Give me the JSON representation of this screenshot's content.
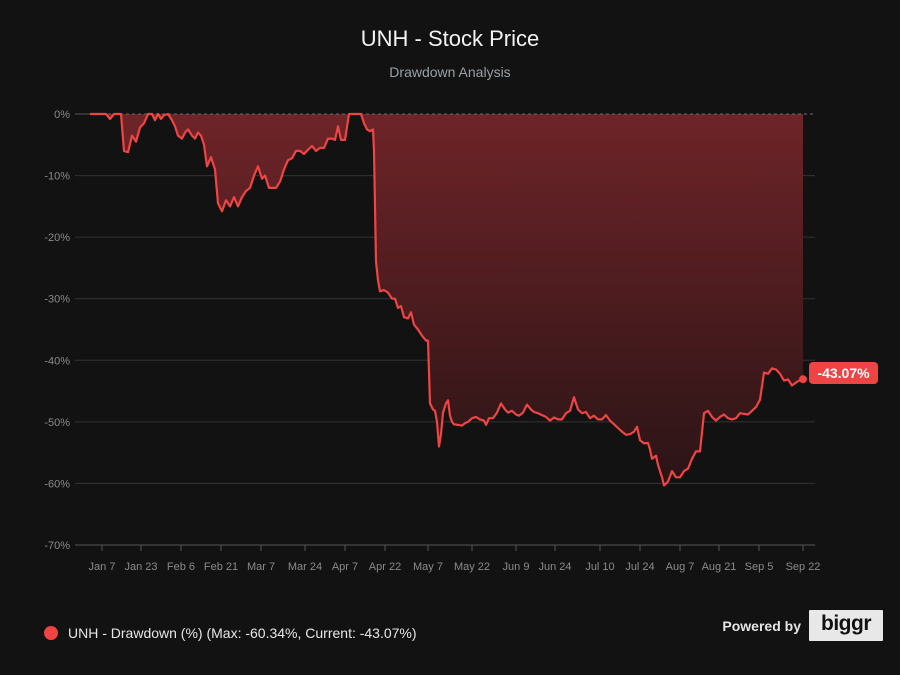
{
  "header": {
    "title": "UNH - Stock Price",
    "subtitle": "Drawdown Analysis"
  },
  "legend": {
    "label": "UNH - Drawdown (%) (Max: -60.34%, Current: -43.07%)",
    "color": "#ef4444"
  },
  "footer": {
    "powered_by": "Powered by",
    "brand": "biggr"
  },
  "current_label": "-43.07%",
  "colors": {
    "background": "#121212",
    "line": "#ef4444",
    "fill_top": "#6b2428",
    "fill_bottom": "#2a1416",
    "grid": "#333333",
    "axis_text": "#8a8a8a"
  },
  "chart_data": {
    "type": "area",
    "title": "UNH - Stock Price",
    "subtitle": "Drawdown Analysis",
    "xlabel": "",
    "ylabel": "",
    "ylim": [
      -70,
      0
    ],
    "yticks": [
      "0%",
      "-10%",
      "-20%",
      "-30%",
      "-40%",
      "-50%",
      "-60%",
      "-70%"
    ],
    "xticks": [
      "Jan 7",
      "Jan 23",
      "Feb 6",
      "Feb 21",
      "Mar 7",
      "Mar 24",
      "Apr 7",
      "Apr 22",
      "May 7",
      "May 22",
      "Jun 9",
      "Jun 24",
      "Jul 10",
      "Jul 24",
      "Aug 7",
      "Aug 21",
      "Sep 5",
      "Sep 22"
    ],
    "grid": true,
    "legend_position": "bottom-left",
    "series": [
      {
        "name": "UNH - Drawdown (%)",
        "max_drawdown": -60.34,
        "current": -43.07,
        "points": [
          [
            90,
            0
          ],
          [
            100,
            0
          ],
          [
            106,
            0
          ],
          [
            110,
            -0.8
          ],
          [
            114,
            0
          ],
          [
            121,
            0
          ],
          [
            124,
            -6
          ],
          [
            128,
            -6.2
          ],
          [
            132,
            -3.5
          ],
          [
            136,
            -4.5
          ],
          [
            140,
            -2.2
          ],
          [
            144,
            -1.5
          ],
          [
            148,
            0.2
          ],
          [
            152,
            0
          ],
          [
            155,
            -1
          ],
          [
            158,
            0
          ],
          [
            161,
            -0.8
          ],
          [
            164,
            -0.2
          ],
          [
            168,
            0
          ],
          [
            172,
            -1
          ],
          [
            175,
            -2
          ],
          [
            178,
            -3.5
          ],
          [
            182,
            -4
          ],
          [
            185,
            -3
          ],
          [
            188,
            -2.5
          ],
          [
            192,
            -3.5
          ],
          [
            195,
            -4
          ],
          [
            198,
            -3
          ],
          [
            201,
            -3.5
          ],
          [
            204,
            -5
          ],
          [
            207,
            -8.5
          ],
          [
            211,
            -7
          ],
          [
            215,
            -9
          ],
          [
            218,
            -14.5
          ],
          [
            222,
            -15.8
          ],
          [
            226,
            -14
          ],
          [
            230,
            -15
          ],
          [
            234,
            -13.5
          ],
          [
            238,
            -15
          ],
          [
            242,
            -13.5
          ],
          [
            246,
            -12.5
          ],
          [
            250,
            -12
          ],
          [
            254,
            -10
          ],
          [
            258,
            -8.5
          ],
          [
            262,
            -10.5
          ],
          [
            265,
            -10
          ],
          [
            269,
            -12
          ],
          [
            272,
            -12
          ],
          [
            276,
            -12
          ],
          [
            280,
            -11
          ],
          [
            284,
            -9
          ],
          [
            288,
            -7.5
          ],
          [
            292,
            -7.2
          ],
          [
            296,
            -6
          ],
          [
            300,
            -6
          ],
          [
            304,
            -6.5
          ],
          [
            308,
            -5.8
          ],
          [
            312,
            -5.2
          ],
          [
            316,
            -6
          ],
          [
            320,
            -5.5
          ],
          [
            324,
            -5.5
          ],
          [
            328,
            -4
          ],
          [
            332,
            -4
          ],
          [
            335,
            -4.2
          ],
          [
            338,
            -2
          ],
          [
            341,
            -4.2
          ],
          [
            345,
            -4.2
          ],
          [
            349,
            0
          ],
          [
            353,
            0
          ],
          [
            357,
            0
          ],
          [
            361,
            0
          ],
          [
            364,
            -1.5
          ],
          [
            367,
            -2.5
          ],
          [
            370,
            -2.8
          ],
          [
            373,
            -2.5
          ],
          [
            374,
            -6
          ],
          [
            376,
            -24
          ],
          [
            378,
            -27
          ],
          [
            380,
            -28.8
          ],
          [
            384,
            -28.6
          ],
          [
            388,
            -29
          ],
          [
            392,
            -30
          ],
          [
            395,
            -30
          ],
          [
            398,
            -31.5
          ],
          [
            401,
            -31.2
          ],
          [
            404,
            -33
          ],
          [
            408,
            -33.2
          ],
          [
            411,
            -32.2
          ],
          [
            414,
            -34.2
          ],
          [
            418,
            -35
          ],
          [
            422,
            -36
          ],
          [
            426,
            -36.8
          ],
          [
            428,
            -36.8
          ],
          [
            430,
            -47
          ],
          [
            433,
            -48
          ],
          [
            435,
            -48.2
          ],
          [
            437,
            -50
          ],
          [
            439,
            -54
          ],
          [
            441,
            -52
          ],
          [
            443,
            -48.5
          ],
          [
            446,
            -47
          ],
          [
            448,
            -46.5
          ],
          [
            450,
            -49
          ],
          [
            452,
            -50
          ],
          [
            454,
            -50.4
          ],
          [
            458,
            -50.5
          ],
          [
            462,
            -50.6
          ],
          [
            465,
            -50.2
          ],
          [
            468,
            -50
          ],
          [
            472,
            -49.4
          ],
          [
            476,
            -49.2
          ],
          [
            480,
            -49.6
          ],
          [
            484,
            -49.8
          ],
          [
            486,
            -50.5
          ],
          [
            489,
            -49.4
          ],
          [
            493,
            -49.4
          ],
          [
            497,
            -48.5
          ],
          [
            501,
            -47
          ],
          [
            505,
            -48
          ],
          [
            508,
            -48.5
          ],
          [
            512,
            -48.2
          ],
          [
            516,
            -48.8
          ],
          [
            519,
            -49
          ],
          [
            523,
            -48.5
          ],
          [
            527,
            -47.2
          ],
          [
            531,
            -48
          ],
          [
            534,
            -48.4
          ],
          [
            538,
            -48.6
          ],
          [
            542,
            -48.9
          ],
          [
            546,
            -49.2
          ],
          [
            550,
            -49.8
          ],
          [
            554,
            -49.3
          ],
          [
            558,
            -49.6
          ],
          [
            562,
            -49.6
          ],
          [
            566,
            -48.6
          ],
          [
            570,
            -48.2
          ],
          [
            574,
            -46
          ],
          [
            578,
            -48
          ],
          [
            582,
            -48.6
          ],
          [
            586,
            -48.4
          ],
          [
            590,
            -49.4
          ],
          [
            594,
            -49
          ],
          [
            598,
            -49.6
          ],
          [
            602,
            -49.6
          ],
          [
            606,
            -48.9
          ],
          [
            610,
            -49.8
          ],
          [
            614,
            -50.4
          ],
          [
            618,
            -51
          ],
          [
            622,
            -51.6
          ],
          [
            626,
            -52.1
          ],
          [
            630,
            -52
          ],
          [
            634,
            -51.6
          ],
          [
            637,
            -50.8
          ],
          [
            640,
            -53
          ],
          [
            644,
            -53.5
          ],
          [
            648,
            -53.4
          ],
          [
            650,
            -54.5
          ],
          [
            652,
            -56
          ],
          [
            656,
            -55.5
          ],
          [
            658,
            -57
          ],
          [
            662,
            -59
          ],
          [
            664,
            -60.34
          ],
          [
            668,
            -59.7
          ],
          [
            672,
            -58
          ],
          [
            676,
            -59
          ],
          [
            680,
            -59
          ],
          [
            684,
            -58
          ],
          [
            688,
            -57.6
          ],
          [
            692,
            -56
          ],
          [
            696,
            -54.8
          ],
          [
            700,
            -54.8
          ],
          [
            704,
            -48.6
          ],
          [
            708,
            -48.2
          ],
          [
            712,
            -49.2
          ],
          [
            716,
            -49.8
          ],
          [
            720,
            -49.2
          ],
          [
            724,
            -48.8
          ],
          [
            728,
            -49.4
          ],
          [
            732,
            -49.6
          ],
          [
            736,
            -49.4
          ],
          [
            740,
            -48.6
          ],
          [
            744,
            -48.7
          ],
          [
            748,
            -48.8
          ],
          [
            752,
            -48.2
          ],
          [
            756,
            -47.6
          ],
          [
            760,
            -46.4
          ],
          [
            764,
            -42
          ],
          [
            768,
            -42.2
          ],
          [
            772,
            -41.3
          ],
          [
            776,
            -41.5
          ],
          [
            780,
            -42.2
          ],
          [
            784,
            -43.3
          ],
          [
            788,
            -43.1
          ],
          [
            792,
            -44.1
          ],
          [
            796,
            -43.6
          ],
          [
            800,
            -43.2
          ],
          [
            803,
            -43.07
          ]
        ]
      }
    ]
  }
}
